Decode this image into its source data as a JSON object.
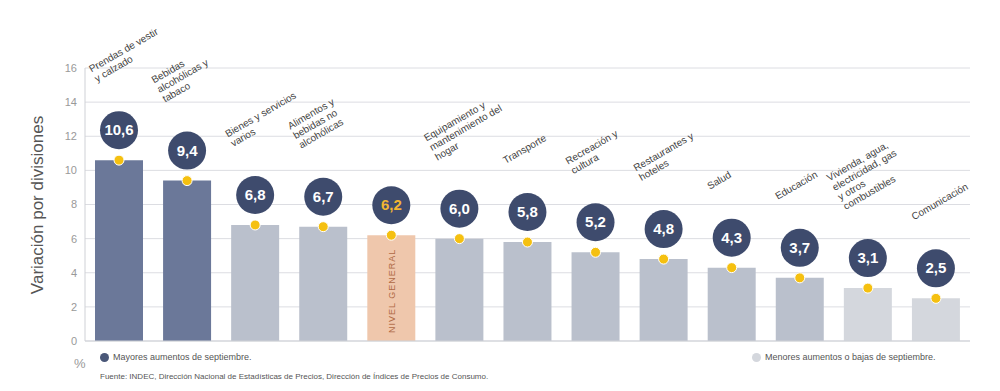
{
  "chart_data": {
    "type": "bar",
    "y_label": "Variación por divisiones",
    "y_unit": "%",
    "categories": [
      "Prendas de vestir y calzado",
      "Bebidas alcohólicas y tabaco",
      "Bienes y servicios varios",
      "Alimentos y bebidas no alcohólicas",
      "NIVEL GENERAL",
      "Equipamiento y mantenimiento del hogar",
      "Transporte",
      "Recreación y cultura",
      "Restaurantes y hoteles",
      "Salud",
      "Educación",
      "Vivienda, agua, electricidad, gas y otros combustibles",
      "Comunicación"
    ],
    "values": [
      10.6,
      9.4,
      6.8,
      6.7,
      6.2,
      6.0,
      5.8,
      5.2,
      4.8,
      4.3,
      3.7,
      3.1,
      2.5
    ],
    "value_labels": [
      "10,6",
      "9,4",
      "6,8",
      "6,7",
      "6,2",
      "6,0",
      "5,8",
      "5,2",
      "4,8",
      "4,3",
      "3,7",
      "3,1",
      "2,5"
    ],
    "colors": [
      "#6b7899",
      "#6b7899",
      "#bac0cc",
      "#bac0cc",
      "#efc7ac",
      "#bac0cc",
      "#bac0cc",
      "#bac0cc",
      "#bac0cc",
      "#bac0cc",
      "#bac0cc",
      "#d4d7dd",
      "#d4d7dd"
    ],
    "ylim": [
      0,
      16
    ],
    "yticks": [
      0,
      2,
      4,
      6,
      8,
      10,
      12,
      14,
      16
    ],
    "grid": true,
    "data_labels": true,
    "annotations": [
      {
        "text": "Mayores aumentos de septiembre.",
        "color": "#4a5778"
      },
      {
        "text": "Menores aumentos o bajas de septiembre.",
        "color": "#d4d7dd"
      }
    ],
    "source": "Fuente: INDEC, Dirección Nacional de Estadísticas de Precios, Dirección de Índices de Precios de Consumo."
  }
}
